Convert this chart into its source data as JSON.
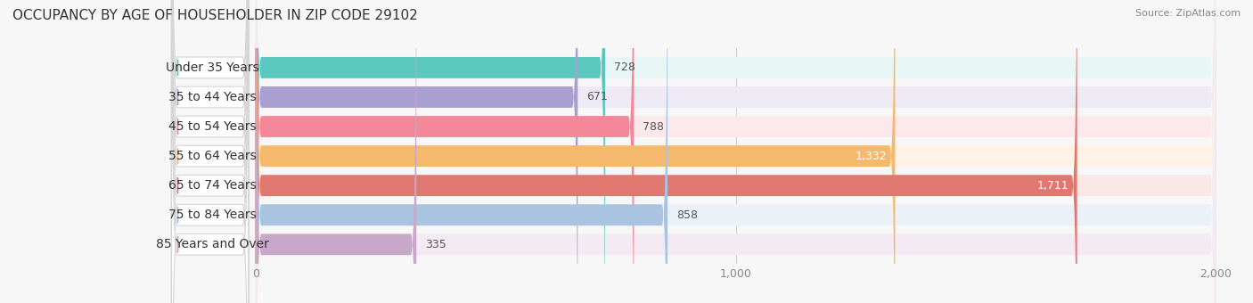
{
  "title": "OCCUPANCY BY AGE OF HOUSEHOLDER IN ZIP CODE 29102",
  "source": "Source: ZipAtlas.com",
  "categories": [
    "Under 35 Years",
    "35 to 44 Years",
    "45 to 54 Years",
    "55 to 64 Years",
    "65 to 74 Years",
    "75 to 84 Years",
    "85 Years and Over"
  ],
  "values": [
    728,
    671,
    788,
    1332,
    1711,
    858,
    335
  ],
  "bar_colors": [
    "#5BC8C0",
    "#A99FD0",
    "#F48898",
    "#F5B96E",
    "#E07870",
    "#A8C4E0",
    "#C8A8C8"
  ],
  "bar_bg_colors": [
    "#E8F7F6",
    "#EDEAF5",
    "#FDE8EC",
    "#FEF3E6",
    "#FAE8E7",
    "#EAF1F8",
    "#F5EAF3"
  ],
  "label_dot_colors": [
    "#5BC8C0",
    "#A99FD0",
    "#F48898",
    "#F5B96E",
    "#E07870",
    "#A8C4E0",
    "#C8A8C8"
  ],
  "xmax": 2000,
  "xticks": [
    0,
    1000,
    2000
  ],
  "xticklabels": [
    "0",
    "1,000",
    "2,000"
  ],
  "title_fontsize": 11,
  "source_fontsize": 8,
  "label_fontsize": 10,
  "value_fontsize": 9,
  "background_color": "#f7f7f7"
}
